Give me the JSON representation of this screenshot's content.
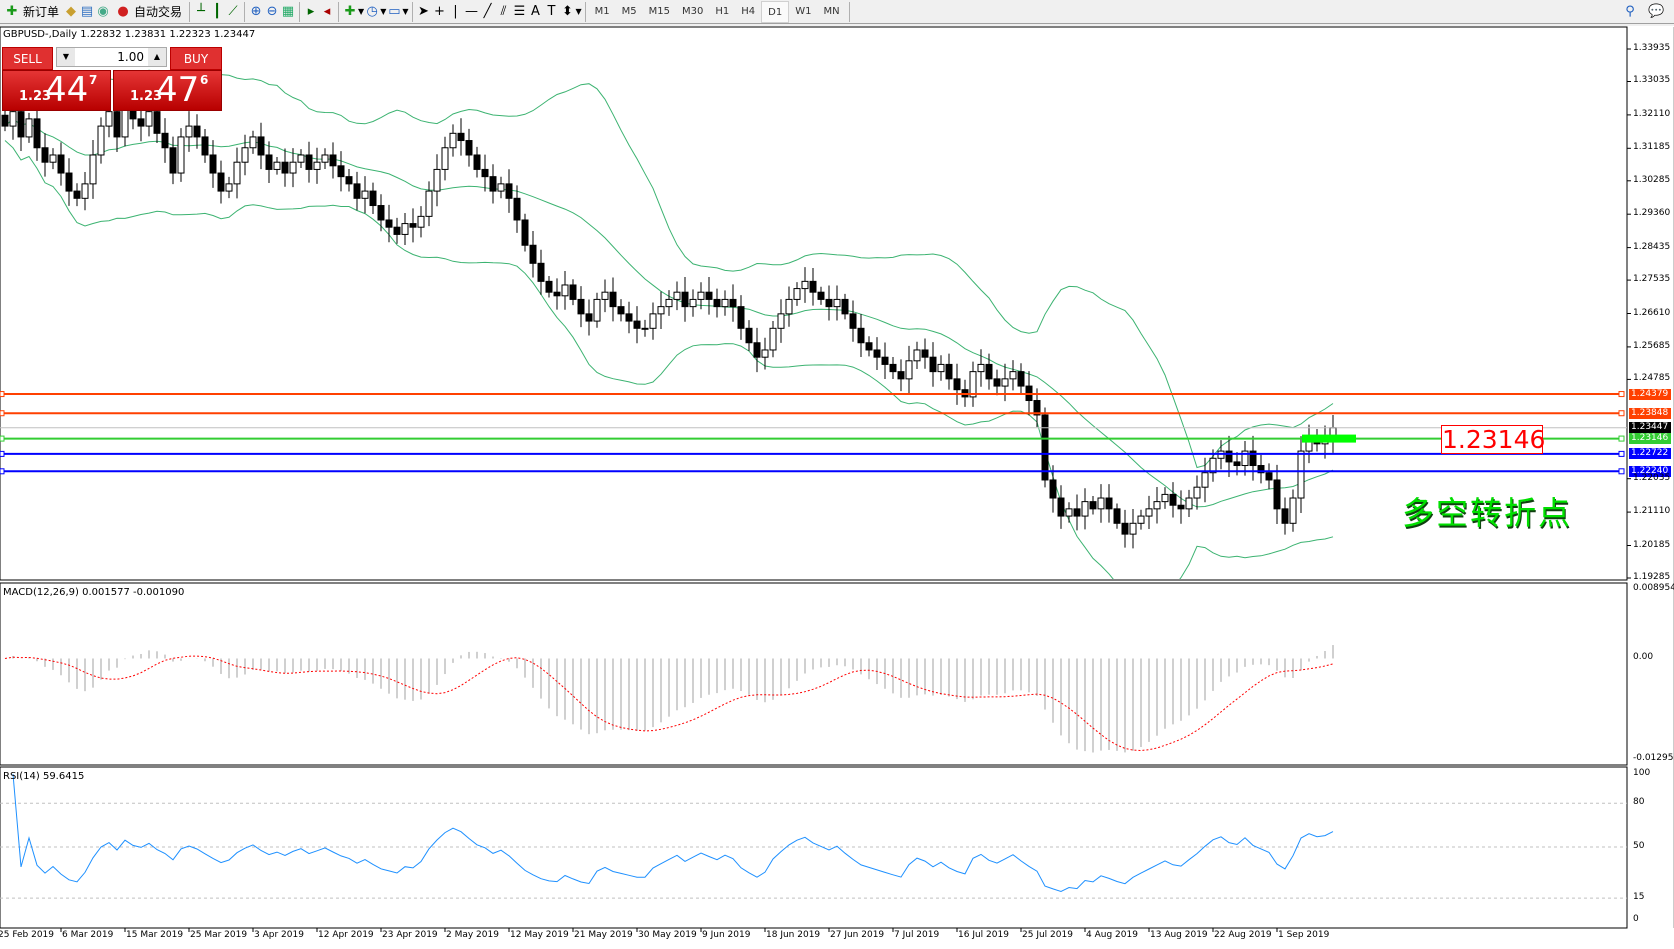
{
  "toolbar": {
    "new_order": "新订单",
    "auto_trading": "自动交易",
    "icons": [
      "new-order-icon",
      "market-watch-icon",
      "navigator-icon",
      "signals-icon",
      "auto-trading-icon",
      "bar-chart-icon",
      "candlestick-icon",
      "line-chart-icon",
      "zoom-in-icon",
      "zoom-out-icon",
      "tile-windows-icon",
      "auto-scroll-icon",
      "chart-shift-icon",
      "indicators-icon",
      "periods-icon",
      "templates-icon",
      "cursor-icon",
      "crosshair-icon",
      "vertical-line-icon",
      "horizontal-line-icon",
      "trendline-icon",
      "equidistant-channel-icon",
      "fibonacci-icon",
      "text-icon",
      "text-label-icon",
      "arrows-icon",
      "search-icon",
      "chat-icon"
    ],
    "timeframes": [
      "M1",
      "M5",
      "M15",
      "M30",
      "H1",
      "H4",
      "D1",
      "W1",
      "MN"
    ],
    "active_timeframe": "D1"
  },
  "chart": {
    "title": "GBPUSD-,Daily  1.22832 1.23831 1.22323 1.23447",
    "symbol": "GBPUSD-",
    "period": "Daily"
  },
  "trade_panel": {
    "sell": "SELL",
    "buy": "BUY",
    "lot": "1.00",
    "sell_small": "1.23",
    "sell_big": "44",
    "sell_tiny": "7",
    "buy_small": "1.23",
    "buy_big": "47",
    "buy_tiny": "6"
  },
  "price_axis": [
    "1.33935",
    "1.33035",
    "1.32110",
    "1.31185",
    "1.30285",
    "1.29360",
    "1.28435",
    "1.27535",
    "1.26610",
    "1.25685",
    "1.24785",
    "1.22035",
    "1.21110",
    "1.20185",
    "1.19285"
  ],
  "levels": [
    {
      "price": "1.24379",
      "color": "#ff4000"
    },
    {
      "price": "1.23848",
      "color": "#ff4000"
    },
    {
      "price": "1.23146",
      "color": "#32cd32"
    },
    {
      "price": "1.22722",
      "color": "#0000ff"
    },
    {
      "price": "1.22240",
      "color": "#0000ff"
    }
  ],
  "current_price": "1.23447",
  "annotation_price": "1.23146",
  "annotation_text": "多空转折点",
  "macd": {
    "label": "MACD(12,26,9) 0.001577 -0.001090",
    "axis": [
      "0.008954",
      "0.00",
      "-0.012957"
    ]
  },
  "rsi": {
    "label": "RSI(14) 59.6415",
    "axis": [
      "100",
      "80",
      "50",
      "15",
      "0"
    ]
  },
  "dates": [
    "25 Feb 2019",
    "6 Mar 2019",
    "15 Mar 2019",
    "25 Mar 2019",
    "3 Apr 2019",
    "12 Apr 2019",
    "23 Apr 2019",
    "2 May 2019",
    "12 May 2019",
    "21 May 2019",
    "30 May 2019",
    "9 Jun 2019",
    "18 Jun 2019",
    "27 Jun 2019",
    "7 Jul 2019",
    "16 Jul 2019",
    "25 Jul 2019",
    "4 Aug 2019",
    "13 Aug 2019",
    "22 Aug 2019",
    "1 Sep 2019"
  ],
  "chart_data": {
    "type": "candlestick",
    "indicators": [
      "Bollinger Bands",
      "MACD(12,26,9)",
      "RSI(14)"
    ],
    "ylim": [
      1.19285,
      1.33935
    ],
    "closes": [
      1.318,
      1.322,
      1.315,
      1.32,
      1.312,
      1.308,
      1.31,
      1.305,
      1.3,
      1.298,
      1.302,
      1.31,
      1.318,
      1.322,
      1.315,
      1.325,
      1.32,
      1.318,
      1.322,
      1.316,
      1.312,
      1.305,
      1.315,
      1.318,
      1.315,
      1.31,
      1.305,
      1.3,
      1.302,
      1.308,
      1.312,
      1.315,
      1.31,
      1.306,
      1.308,
      1.305,
      1.308,
      1.31,
      1.306,
      1.308,
      1.31,
      1.307,
      1.304,
      1.302,
      1.298,
      1.3,
      1.296,
      1.292,
      1.29,
      1.288,
      1.291,
      1.29,
      1.293,
      1.3,
      1.306,
      1.312,
      1.316,
      1.314,
      1.31,
      1.306,
      1.304,
      1.3,
      1.302,
      1.298,
      1.292,
      1.285,
      1.28,
      1.275,
      1.272,
      1.271,
      1.274,
      1.27,
      1.266,
      1.264,
      1.27,
      1.272,
      1.268,
      1.266,
      1.264,
      1.262,
      1.262,
      1.266,
      1.268,
      1.27,
      1.272,
      1.268,
      1.27,
      1.272,
      1.27,
      1.268,
      1.27,
      1.268,
      1.262,
      1.258,
      1.254,
      1.256,
      1.262,
      1.266,
      1.27,
      1.273,
      1.275,
      1.272,
      1.27,
      1.268,
      1.27,
      1.266,
      1.262,
      1.258,
      1.256,
      1.254,
      1.252,
      1.25,
      1.248,
      1.253,
      1.256,
      1.254,
      1.25,
      1.252,
      1.248,
      1.245,
      1.243,
      1.25,
      1.252,
      1.248,
      1.246,
      1.248,
      1.25,
      1.246,
      1.242,
      1.238,
      1.22,
      1.215,
      1.21,
      1.212,
      1.21,
      1.214,
      1.212,
      1.215,
      1.212,
      1.208,
      1.205,
      1.208,
      1.21,
      1.212,
      1.214,
      1.216,
      1.213,
      1.212,
      1.215,
      1.218,
      1.222,
      1.226,
      1.228,
      1.225,
      1.224,
      1.228,
      1.224,
      1.222,
      1.22,
      1.212,
      1.208,
      1.215,
      1.228,
      1.232,
      1.23,
      1.231,
      1.23447
    ]
  }
}
